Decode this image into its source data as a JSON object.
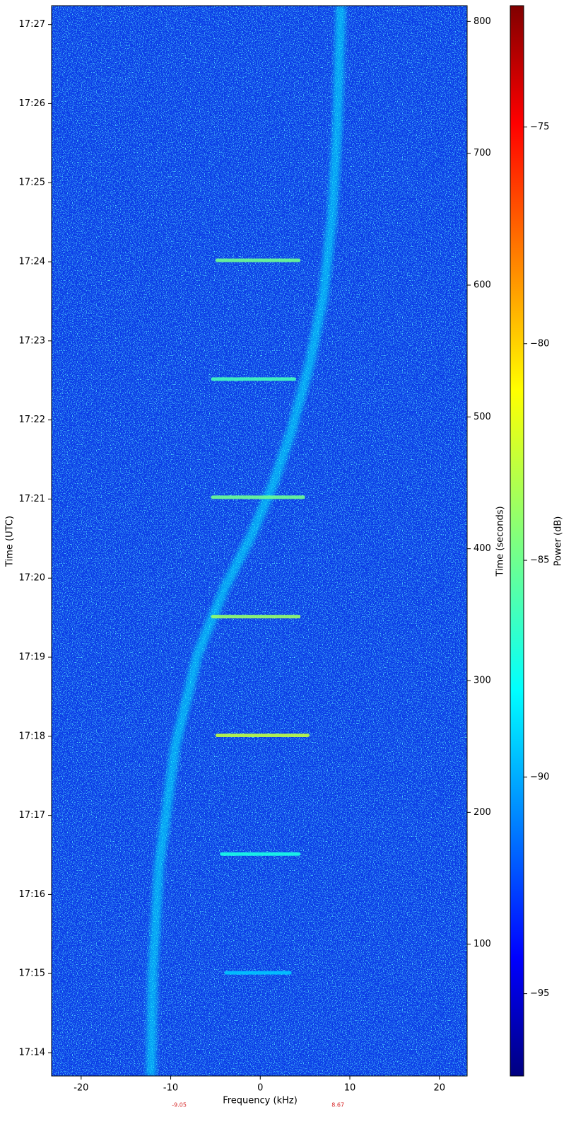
{
  "chart_data": {
    "type": "spectrogram",
    "x_label": "Frequency (kHz)",
    "y_label": "Time (UTC)",
    "y2_label": "Time (seconds)",
    "colorbar_label": "Power (dB)",
    "xlim": [
      -23.3,
      23.1
    ],
    "xticks": [
      -20,
      -10,
      0,
      10,
      20
    ],
    "ylim": [
      0,
      812
    ],
    "yticks": [
      {
        "value": 17.7,
        "label": "17:14"
      },
      {
        "value": 77.7,
        "label": "17:15"
      },
      {
        "value": 137.7,
        "label": "17:16"
      },
      {
        "value": 197.7,
        "label": "17:17"
      },
      {
        "value": 257.7,
        "label": "17:18"
      },
      {
        "value": 317.7,
        "label": "17:19"
      },
      {
        "value": 377.7,
        "label": "17:20"
      },
      {
        "value": 437.7,
        "label": "17:21"
      },
      {
        "value": 497.7,
        "label": "17:22"
      },
      {
        "value": 557.7,
        "label": "17:23"
      },
      {
        "value": 617.7,
        "label": "17:24"
      },
      {
        "value": 677.7,
        "label": "17:25"
      },
      {
        "value": 737.7,
        "label": "17:26"
      },
      {
        "value": 797.7,
        "label": "17:27"
      }
    ],
    "y2lim": [
      0,
      812
    ],
    "y2ticks": [
      100,
      200,
      300,
      400,
      500,
      600,
      700,
      800
    ],
    "clim": [
      -96.9,
      -72.2
    ],
    "cticks": [
      {
        "value": -95,
        "label": "−95"
      },
      {
        "value": -90,
        "label": "−90"
      },
      {
        "value": -85,
        "label": "−85"
      },
      {
        "value": -80,
        "label": "−80"
      },
      {
        "value": -75,
        "label": "−75"
      }
    ],
    "trace": {
      "x": [
        -12.2,
        -12,
        -11.3,
        -9.5,
        -7,
        -4,
        -1,
        1.5,
        3.5,
        5.5,
        7,
        8,
        8.6,
        9
      ],
      "y": [
        0,
        80,
        160,
        250,
        320,
        370,
        410,
        450,
        490,
        540,
        590,
        650,
        720,
        812
      ],
      "power": -88
    },
    "bursts": {
      "times": [
        78.3,
        168.4,
        258.4,
        348.5,
        439.1,
        528.7,
        618.8
      ],
      "x_start": [
        -4,
        -4.5,
        -5,
        -5.5,
        -5.5,
        -5.5,
        -5
      ],
      "x_end": [
        3.5,
        4.5,
        5.5,
        4.5,
        5,
        4,
        4.5
      ],
      "powers": [
        -89,
        -87,
        -83,
        -84,
        -85,
        -86,
        -85
      ]
    },
    "markers": [
      -9.05,
      8.67
    ],
    "marker_color": "#d62728",
    "background_color": "#0b3be6"
  }
}
